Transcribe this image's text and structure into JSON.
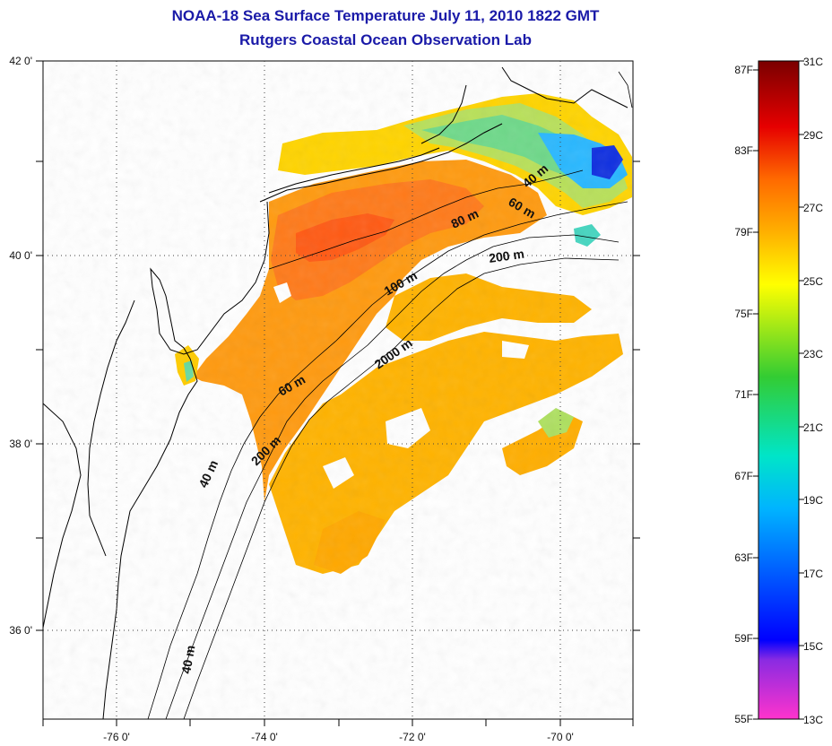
{
  "title": "NOAA-18 Sea Surface Temperature July 11, 2010 1822 GMT",
  "subtitle": "Rutgers Coastal Ocean Observation Lab",
  "map": {
    "lon_range": [
      -77.0,
      -69.0
    ],
    "lat_range": [
      35.0,
      42.0
    ],
    "lon_ticks": [
      {
        "value": -76,
        "label": "-76 0'"
      },
      {
        "value": -74,
        "label": "-74 0'"
      },
      {
        "value": -72,
        "label": "-72 0'"
      },
      {
        "value": -70,
        "label": "-70 0'"
      }
    ],
    "lat_ticks": [
      {
        "value": 42,
        "label": "42 0'"
      },
      {
        "value": 40,
        "label": "40 0'"
      },
      {
        "value": 38,
        "label": "38 0'"
      },
      {
        "value": 36,
        "label": "36 0'"
      }
    ],
    "grid": "dotted"
  },
  "contour_labels": [
    "40 m",
    "60 m",
    "80 m",
    "200 m",
    "100 m",
    "2000 m",
    "60 m",
    "200 m",
    "40 m",
    "40 m"
  ],
  "colorbar": {
    "colors": [
      "#ff33cc",
      "#8a2be2",
      "#0000ff",
      "#00b4ff",
      "#00e5c8",
      "#33cc33",
      "#ffff00",
      "#ffb000",
      "#ff6a00",
      "#e60000",
      "#7a0000"
    ],
    "fahrenheit": [
      "87F",
      "83F",
      "79F",
      "75F",
      "71F",
      "67F",
      "63F",
      "59F",
      "55F"
    ],
    "celsius": [
      "31C",
      "29C",
      "27C",
      "25C",
      "23C",
      "21C",
      "19C",
      "17C",
      "15C",
      "13C"
    ]
  }
}
